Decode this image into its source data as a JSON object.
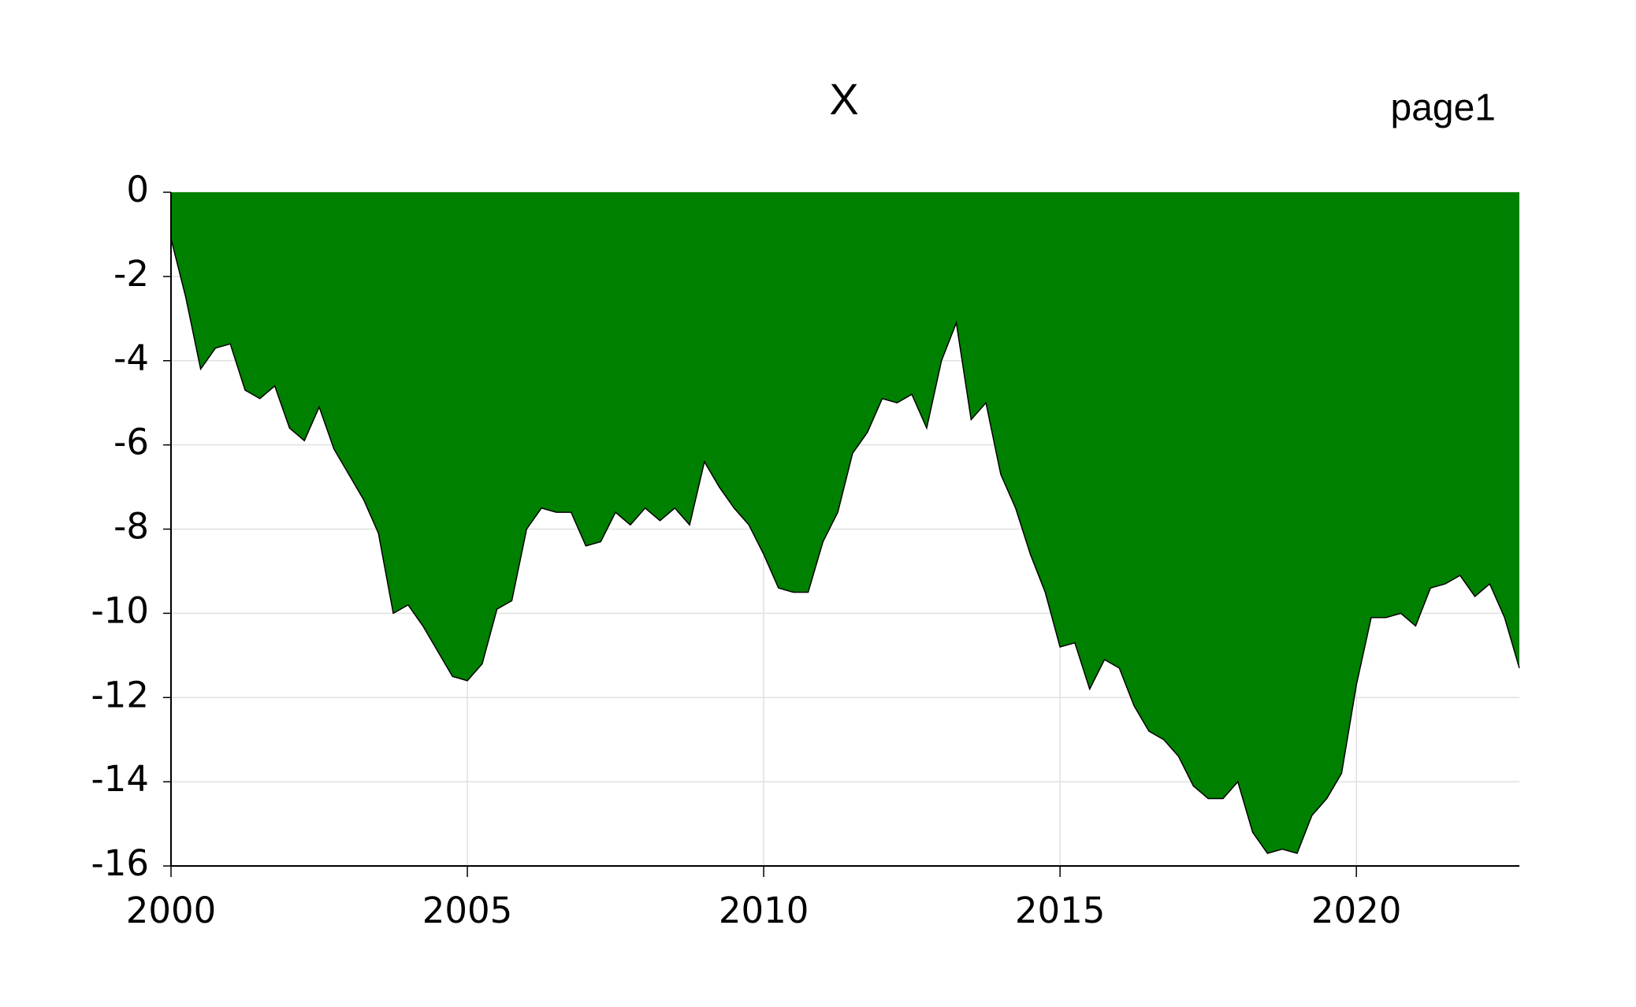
{
  "chart_data": {
    "type": "area",
    "title": "X",
    "annotation": "page1",
    "x": [
      2000,
      2000.25,
      2000.5,
      2000.75,
      2001,
      2001.25,
      2001.5,
      2001.75,
      2002,
      2002.25,
      2002.5,
      2002.75,
      2003,
      2003.25,
      2003.5,
      2003.75,
      2004,
      2004.25,
      2004.5,
      2004.75,
      2005,
      2005.25,
      2005.5,
      2005.75,
      2006,
      2006.25,
      2006.5,
      2006.75,
      2007,
      2007.25,
      2007.5,
      2007.75,
      2008,
      2008.25,
      2008.5,
      2008.75,
      2009,
      2009.25,
      2009.5,
      2009.75,
      2010,
      2010.25,
      2010.5,
      2010.75,
      2011,
      2011.25,
      2011.5,
      2011.75,
      2012,
      2012.25,
      2012.5,
      2012.75,
      2013,
      2013.25,
      2013.5,
      2013.75,
      2014,
      2014.25,
      2014.5,
      2014.75,
      2015,
      2015.25,
      2015.5,
      2015.75,
      2016,
      2016.25,
      2016.5,
      2016.75,
      2017,
      2017.25,
      2017.5,
      2017.75,
      2018,
      2018.25,
      2018.5,
      2018.75,
      2019,
      2019.25,
      2019.5,
      2019.75,
      2020,
      2020.25,
      2020.5,
      2020.75,
      2021,
      2021.25,
      2021.5,
      2021.75,
      2022,
      2022.25,
      2022.5,
      2022.75
    ],
    "values": [
      -1.1,
      -2.5,
      -4.2,
      -3.7,
      -3.6,
      -4.7,
      -4.9,
      -4.6,
      -5.6,
      -5.9,
      -5.1,
      -6.1,
      -6.7,
      -7.3,
      -8.1,
      -10.0,
      -9.8,
      -10.3,
      -10.9,
      -11.5,
      -11.6,
      -11.2,
      -9.9,
      -9.7,
      -8.0,
      -7.5,
      -7.6,
      -7.6,
      -8.4,
      -8.3,
      -7.6,
      -7.9,
      -7.5,
      -7.8,
      -7.5,
      -7.9,
      -6.4,
      -7.0,
      -7.5,
      -7.9,
      -8.6,
      -9.4,
      -9.5,
      -9.5,
      -8.3,
      -7.6,
      -6.2,
      -5.7,
      -4.9,
      -5.0,
      -4.8,
      -5.6,
      -4.0,
      -3.1,
      -5.4,
      -5.0,
      -6.7,
      -7.5,
      -8.6,
      -9.5,
      -10.8,
      -10.7,
      -11.8,
      -11.1,
      -11.3,
      -12.2,
      -12.8,
      -13.0,
      -13.4,
      -14.1,
      -14.4,
      -14.4,
      -14.0,
      -15.2,
      -15.7,
      -15.6,
      -15.7,
      -14.8,
      -14.4,
      -13.8,
      -11.7,
      -10.1,
      -10.1,
      -10.0,
      -10.3,
      -9.4,
      -9.3,
      -9.1,
      -9.6,
      -9.3,
      -10.1,
      -11.3
    ],
    "color": "#008000",
    "xlim": [
      2000,
      2022.75
    ],
    "xticks": [
      2000,
      2005,
      2010,
      2015,
      2020
    ],
    "ylim": [
      -16,
      0
    ],
    "yticks": [
      0,
      -2,
      -4,
      -6,
      -8,
      -10,
      -12,
      -14,
      -16
    ],
    "grid": true
  }
}
